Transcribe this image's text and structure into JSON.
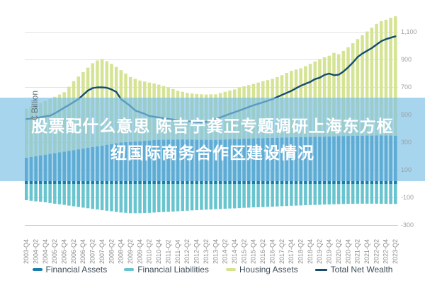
{
  "overlay": {
    "line1": "股票配什么意思 陈吉宁龚正专题调研上海东方枢",
    "line2": "纽国际商务合作区建设情况",
    "band_color": "#7dc1e6"
  },
  "chart_data": {
    "type": "bar",
    "title": "",
    "ylabel": "€ Billion",
    "xlabel": "",
    "grid": true,
    "legend_position": "bottom",
    "ylim": [
      -300,
      1250
    ],
    "stacked": true,
    "quarters": [
      "2003-Q4",
      "2004-Q1",
      "2004-Q2",
      "2004-Q3",
      "2004-Q4",
      "2005-Q1",
      "2005-Q2",
      "2005-Q3",
      "2005-Q4",
      "2006-Q1",
      "2006-Q2",
      "2006-Q3",
      "2006-Q4",
      "2007-Q1",
      "2007-Q2",
      "2007-Q3",
      "2007-Q4",
      "2008-Q1",
      "2008-Q2",
      "2008-Q3",
      "2008-Q4",
      "2009-Q1",
      "2009-Q2",
      "2009-Q3",
      "2009-Q4",
      "2010-Q1",
      "2010-Q2",
      "2010-Q3",
      "2010-Q4",
      "2011-Q1",
      "2011-Q2",
      "2011-Q3",
      "2011-Q4",
      "2012-Q1",
      "2012-Q2",
      "2012-Q3",
      "2012-Q4",
      "2013-Q1",
      "2013-Q2",
      "2013-Q3",
      "2013-Q4",
      "2014-Q1",
      "2014-Q2",
      "2014-Q3",
      "2014-Q4",
      "2015-Q1",
      "2015-Q2",
      "2015-Q3",
      "2015-Q4",
      "2016-Q1",
      "2016-Q2",
      "2016-Q3",
      "2016-Q4",
      "2017-Q1",
      "2017-Q2",
      "2017-Q3",
      "2017-Q4",
      "2018-Q1",
      "2018-Q2",
      "2018-Q3",
      "2018-Q4",
      "2019-Q1",
      "2019-Q2",
      "2019-Q3",
      "2019-Q4",
      "2020-Q1",
      "2020-Q2",
      "2020-Q3",
      "2020-Q4",
      "2021-Q1",
      "2021-Q2",
      "2021-Q3",
      "2021-Q4",
      "2022-Q1",
      "2022-Q2",
      "2022-Q3",
      "2022-Q4",
      "2023-Q1",
      "2023-Q2"
    ],
    "x_tick_labels": [
      "2003-Q4",
      "2004-Q2",
      "2004-Q4",
      "2005-Q2",
      "2005-Q4",
      "2006-Q2",
      "2006-Q4",
      "2007-Q2",
      "2007-Q4",
      "2008-Q2",
      "2008-Q4",
      "2009-Q2",
      "2009-Q4",
      "2010-Q2",
      "2010-Q4",
      "2011-Q2",
      "2011-Q4",
      "2012-Q2",
      "2012-Q4",
      "2013-Q2",
      "2013-Q4",
      "2014-Q2",
      "2014-Q4",
      "2015-Q2",
      "2015-Q4",
      "2016-Q2",
      "2016-Q4",
      "2017-Q2",
      "2017-Q4",
      "2018-Q2",
      "2018-Q4",
      "2019-Q2",
      "2019-Q4",
      "2020-Q2",
      "2020-Q4",
      "2021-Q2",
      "2021-Q4",
      "2022-Q2",
      "2022-Q4",
      "2023-Q2"
    ],
    "x_ticks_every": 2,
    "y_ticks": [
      {
        "label": "1,100",
        "value": 1100
      },
      {
        "label": "900",
        "value": 900
      },
      {
        "label": "700",
        "value": 700
      },
      {
        "label": "500",
        "value": 500
      },
      {
        "label": "300",
        "value": 300
      },
      {
        "label": "100",
        "value": 100
      },
      {
        "label": "-100",
        "value": -100
      },
      {
        "label": "-300",
        "value": -300
      }
    ],
    "series": [
      {
        "name": "Financial Assets",
        "color": "#1d7daa",
        "kind": "bar-positive",
        "values": [
          190,
          196,
          201,
          207,
          212,
          218,
          223,
          229,
          234,
          240,
          245,
          251,
          256,
          262,
          267,
          273,
          278,
          284,
          289,
          295,
          300,
          303,
          305,
          308,
          310,
          313,
          315,
          318,
          320,
          320,
          321,
          321,
          322,
          322,
          321,
          321,
          320,
          320,
          320,
          320,
          320,
          321,
          322,
          324,
          325,
          326,
          328,
          329,
          330,
          331,
          332,
          333,
          334,
          335,
          336,
          337,
          338,
          339,
          340,
          340,
          341,
          342,
          342,
          343,
          344,
          345,
          346,
          347,
          348,
          349,
          350,
          350,
          351,
          351,
          352,
          352,
          351,
          351,
          350
        ]
      },
      {
        "name": "Financial Liabilities",
        "color": "#68c4ce",
        "kind": "bar-negative",
        "values": [
          -118,
          -122,
          -126,
          -129,
          -133,
          -138,
          -143,
          -147,
          -152,
          -157,
          -162,
          -167,
          -172,
          -176,
          -181,
          -185,
          -190,
          -194,
          -198,
          -203,
          -207,
          -209,
          -212,
          -212,
          -212,
          -210,
          -209,
          -207,
          -205,
          -203,
          -202,
          -200,
          -198,
          -196,
          -194,
          -192,
          -190,
          -188,
          -186,
          -185,
          -183,
          -182,
          -180,
          -178,
          -177,
          -175,
          -173,
          -172,
          -170,
          -169,
          -168,
          -166,
          -165,
          -163,
          -161,
          -160,
          -158,
          -157,
          -156,
          -154,
          -153,
          -152,
          -151,
          -149,
          -148,
          -147,
          -146,
          -145,
          -144,
          -144,
          -143,
          -143,
          -143,
          -143,
          -143,
          -144,
          -144,
          -145,
          -145
        ]
      },
      {
        "name": "Housing Assets",
        "color": "#d4e494",
        "kind": "bar-stacked-on-financial-assets",
        "values": [
          355,
          362,
          371,
          379,
          388,
          398,
          409,
          419,
          431,
          465,
          500,
          527,
          554,
          581,
          608,
          622,
          627,
          606,
          581,
          553,
          525,
          497,
          470,
          454,
          440,
          429,
          420,
          410,
          400,
          390,
          379,
          367,
          353,
          346,
          339,
          335,
          332,
          330,
          328,
          329,
          330,
          338,
          346,
          353,
          360,
          374,
          380,
          388,
          395,
          404,
          413,
          420,
          428,
          440,
          452,
          468,
          482,
          490,
          498,
          514,
          529,
          546,
          563,
          575,
          586,
          605,
          594,
          618,
          642,
          671,
          700,
          728,
          754,
          782,
          808,
          828,
          839,
          854,
          865
        ]
      },
      {
        "name": "Total Net Wealth",
        "color": "#174c70",
        "kind": "line",
        "type": "line",
        "values": [
          470,
          474,
          478,
          484,
          490,
          495,
          512,
          532,
          553,
          573,
          594,
          615,
          646,
          677,
          695,
          700,
          700,
          697,
          685,
          667,
          615,
          590,
          564,
          533,
          520,
          508,
          492,
          487,
          482,
          477,
          472,
          467,
          462,
          458,
          455,
          451,
          448,
          446,
          450,
          460,
          470,
          482,
          495,
          508,
          520,
          532,
          545,
          558,
          570,
          581,
          592,
          603,
          615,
          630,
          645,
          660,
          675,
          694,
          712,
          726,
          740,
          760,
          770,
          790,
          800,
          788,
          792,
          815,
          845,
          880,
          920,
          945,
          965,
          985,
          1010,
          1035,
          1050,
          1060,
          1070
        ]
      }
    ]
  }
}
